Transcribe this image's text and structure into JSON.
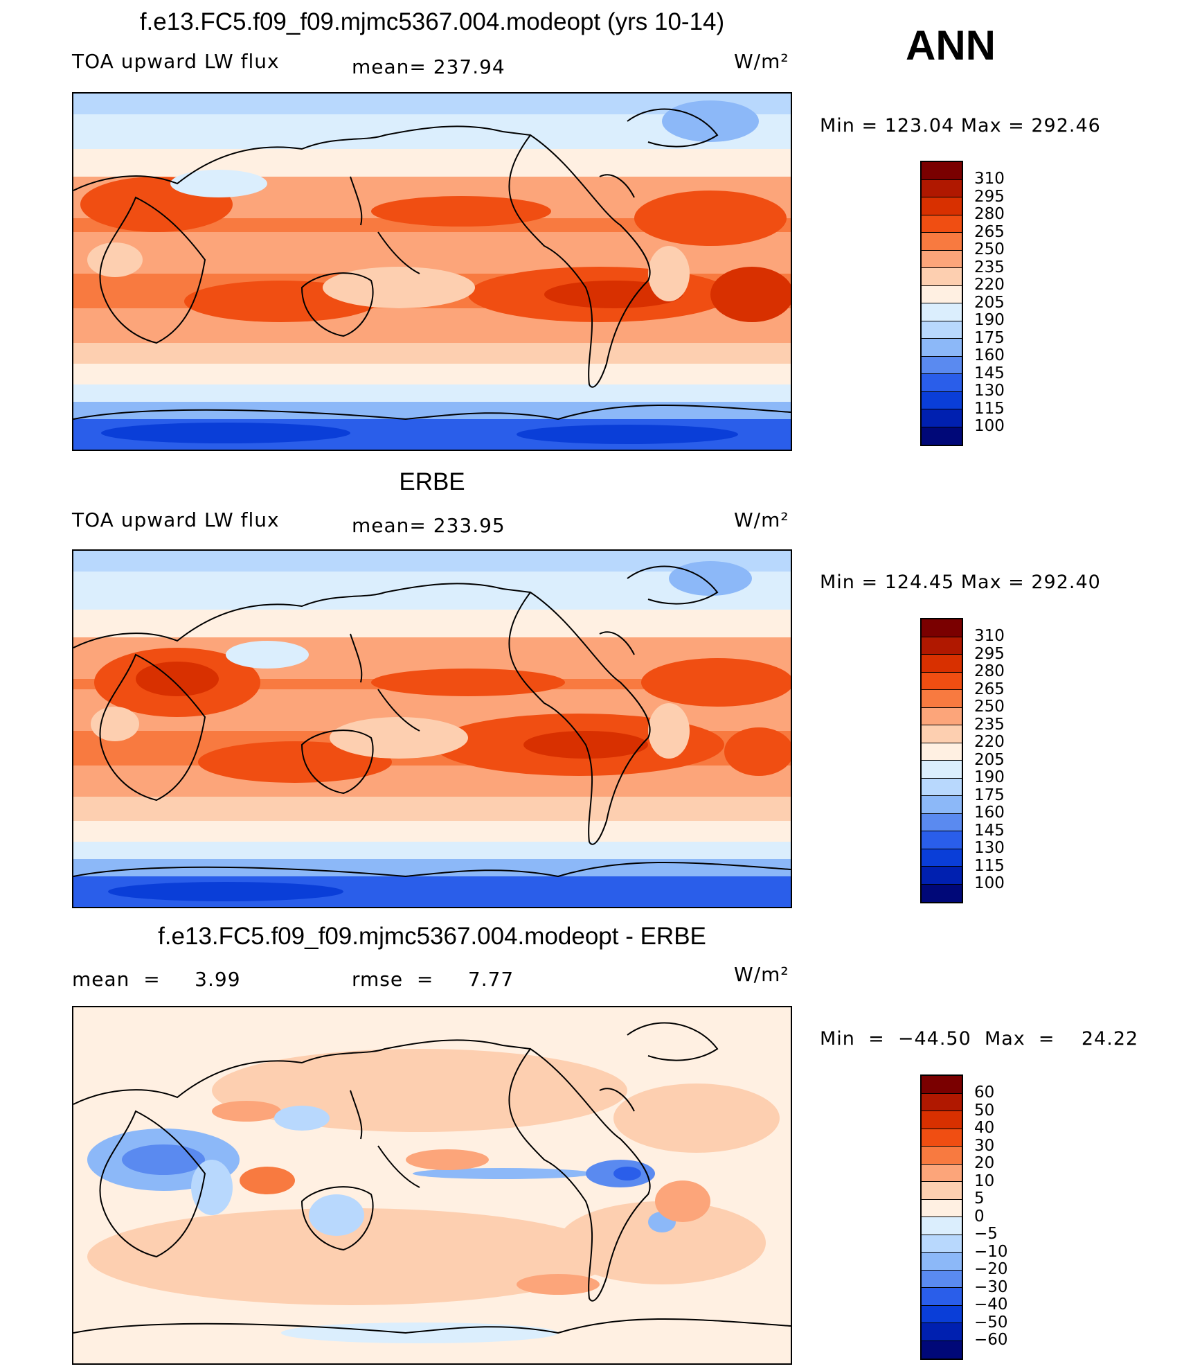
{
  "season": "ANN",
  "panels": [
    {
      "title": "f.e13.FC5.f09_f09.mjmc5367.004.modeopt (yrs 10-14)",
      "left_label": "TOA upward LW flux",
      "mid_label": "mean= 237.94",
      "units": "W/m²",
      "stats": "Min  =  123.04  Max  =  292.46",
      "colorbar_labels": [
        "310",
        "295",
        "280",
        "265",
        "250",
        "235",
        "220",
        "205",
        "190",
        "175",
        "160",
        "145",
        "130",
        "115",
        "100"
      ]
    },
    {
      "title": "ERBE",
      "left_label": "TOA upward LW flux",
      "mid_label": "mean= 233.95",
      "units": "W/m²",
      "stats": "Min  =  124.45  Max  =  292.40",
      "colorbar_labels": [
        "310",
        "295",
        "280",
        "265",
        "250",
        "235",
        "220",
        "205",
        "190",
        "175",
        "160",
        "145",
        "130",
        "115",
        "100"
      ]
    },
    {
      "title": "f.e13.FC5.f09_f09.mjmc5367.004.modeopt - ERBE",
      "left_label": "mean  =     3.99",
      "mid_label": "rmse  =     7.77",
      "units": "W/m²",
      "stats": "Min  =  −44.50  Max  =    24.22",
      "colorbar_labels": [
        "60",
        "50",
        "40",
        "30",
        "20",
        "10",
        "5",
        "0",
        "−5",
        "−10",
        "−20",
        "−30",
        "−40",
        "−50",
        "−60"
      ]
    }
  ],
  "colorbar_colors": [
    "#7a0000",
    "#b01800",
    "#d83000",
    "#f04e12",
    "#f87a40",
    "#fca57a",
    "#fdcfb0",
    "#fff0e2",
    "#dbeefd",
    "#b8d8fd",
    "#8cb8f8",
    "#5a8af0",
    "#2a5eea",
    "#0a3ed8",
    "#0020b0",
    "#000878"
  ],
  "colors": {
    "land_outline": "#000000",
    "background": "#ffffff"
  }
}
